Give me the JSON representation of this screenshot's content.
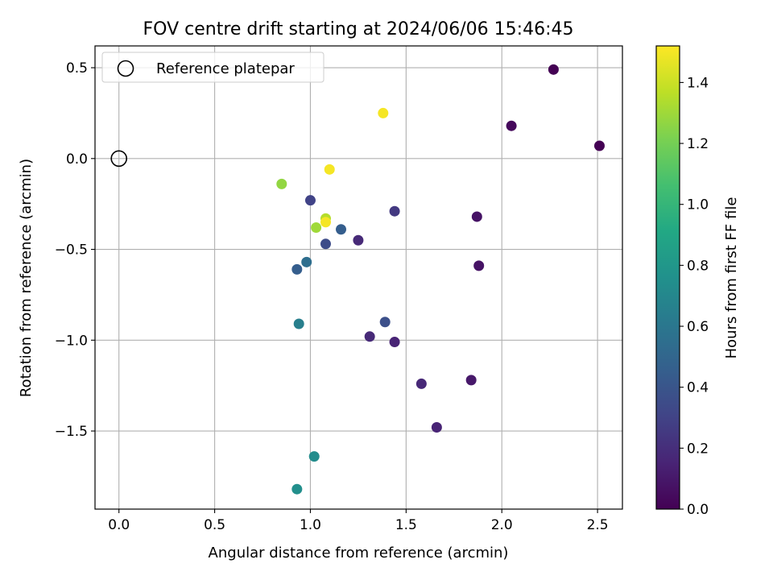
{
  "chart_data": {
    "type": "scatter",
    "title": "FOV centre drift starting at 2024/06/06 15:46:45",
    "xlabel": "Angular distance from reference (arcmin)",
    "ylabel": "Rotation from reference (arcmin)",
    "xlim": [
      -0.125,
      2.63
    ],
    "ylim": [
      -1.93,
      0.62
    ],
    "xticks": [
      0.0,
      0.5,
      1.0,
      1.5,
      2.0,
      2.5
    ],
    "xtick_labels": [
      "0.0",
      "0.5",
      "1.0",
      "1.5",
      "2.0",
      "2.5"
    ],
    "yticks": [
      0.5,
      0.0,
      -0.5,
      -1.0,
      -1.5
    ],
    "ytick_labels": [
      "0.5",
      "0.0",
      "−0.5",
      "−1.0",
      "−1.5"
    ],
    "grid": true,
    "legend": {
      "position": "top-left",
      "entries": [
        "Reference platepar"
      ]
    },
    "reference_point": {
      "x": 0.0,
      "y": 0.0
    },
    "colorbar": {
      "label": "Hours from first FF file",
      "colormap": "viridis",
      "range": [
        0.0,
        1.52
      ],
      "ticks": [
        0.0,
        0.2,
        0.4,
        0.6,
        0.8,
        1.0,
        1.2,
        1.4
      ],
      "tick_labels": [
        "0.0",
        "0.2",
        "0.4",
        "0.6",
        "0.8",
        "1.0",
        "1.2",
        "1.4"
      ]
    },
    "points": [
      {
        "x": 2.27,
        "y": 0.49,
        "hours": 0.0
      },
      {
        "x": 2.51,
        "y": 0.07,
        "hours": 0.0
      },
      {
        "x": 2.05,
        "y": 0.18,
        "hours": 0.03
      },
      {
        "x": 1.87,
        "y": -0.32,
        "hours": 0.08
      },
      {
        "x": 1.88,
        "y": -0.59,
        "hours": 0.08
      },
      {
        "x": 1.84,
        "y": -1.22,
        "hours": 0.1
      },
      {
        "x": 1.66,
        "y": -1.48,
        "hours": 0.15
      },
      {
        "x": 1.58,
        "y": -1.24,
        "hours": 0.17
      },
      {
        "x": 1.44,
        "y": -1.01,
        "hours": 0.15
      },
      {
        "x": 1.31,
        "y": -0.98,
        "hours": 0.18
      },
      {
        "x": 1.25,
        "y": -0.45,
        "hours": 0.18
      },
      {
        "x": 1.44,
        "y": -0.29,
        "hours": 0.25
      },
      {
        "x": 1.0,
        "y": -0.23,
        "hours": 0.3
      },
      {
        "x": 1.08,
        "y": -0.47,
        "hours": 0.35
      },
      {
        "x": 1.39,
        "y": -0.9,
        "hours": 0.37
      },
      {
        "x": 1.16,
        "y": -0.39,
        "hours": 0.45
      },
      {
        "x": 0.93,
        "y": -0.61,
        "hours": 0.45
      },
      {
        "x": 0.98,
        "y": -0.57,
        "hours": 0.55
      },
      {
        "x": 0.94,
        "y": -0.91,
        "hours": 0.65
      },
      {
        "x": 1.02,
        "y": -1.64,
        "hours": 0.73
      },
      {
        "x": 0.93,
        "y": -1.82,
        "hours": 0.75
      },
      {
        "x": 0.85,
        "y": -0.14,
        "hours": 1.27
      },
      {
        "x": 1.03,
        "y": -0.38,
        "hours": 1.3
      },
      {
        "x": 1.08,
        "y": -0.33,
        "hours": 1.35
      },
      {
        "x": 1.08,
        "y": -0.35,
        "hours": 1.5
      },
      {
        "x": 1.1,
        "y": -0.06,
        "hours": 1.5
      },
      {
        "x": 1.38,
        "y": 0.25,
        "hours": 1.5
      }
    ]
  }
}
